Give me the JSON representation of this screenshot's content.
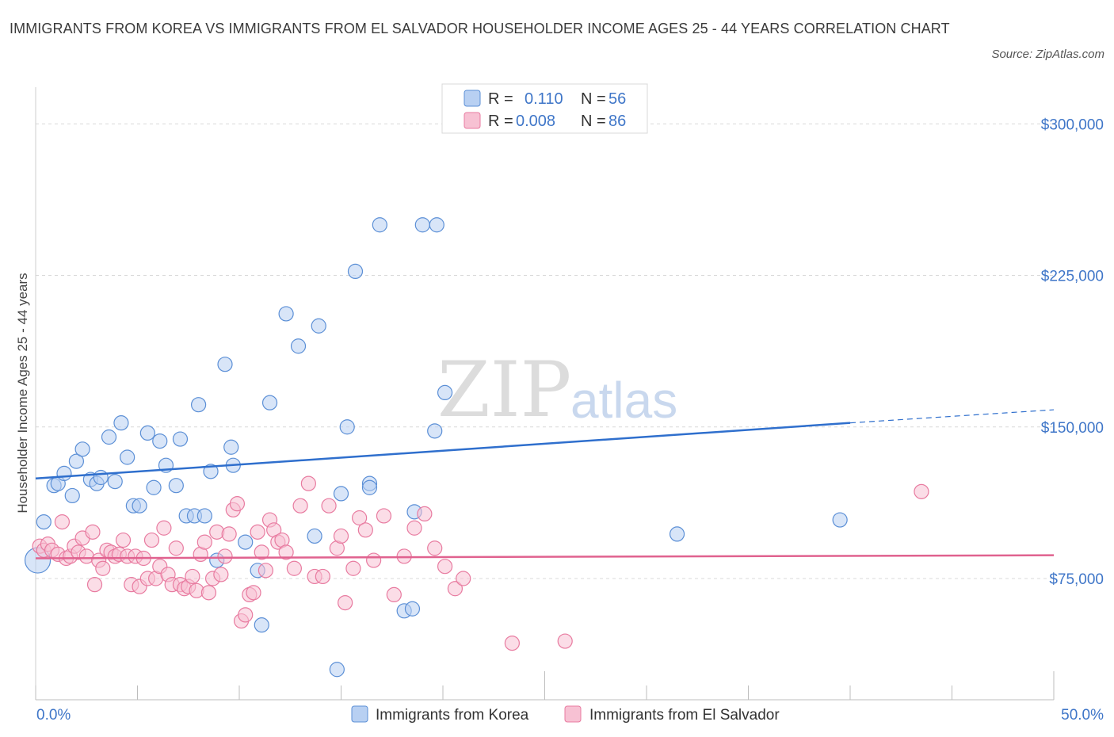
{
  "title": "IMMIGRANTS FROM KOREA VS IMMIGRANTS FROM EL SALVADOR HOUSEHOLDER INCOME AGES 25 - 44 YEARS CORRELATION CHART",
  "source": "Source: ZipAtlas.com",
  "watermark": {
    "zip": "ZIP",
    "atlas": "atlas"
  },
  "colors": {
    "korea": "#5b8fd6",
    "korea_fill": "#b8d0f2",
    "el_salvador": "#e87ba0",
    "el_salvador_fill": "#f7c1d3",
    "axis_text": "#3f76c8"
  },
  "legend_top": [
    {
      "r_label": "R =",
      "r_value": "0.110",
      "n_label": "N =",
      "n_value": "56"
    },
    {
      "r_label": "R =",
      "r_value": "0.008",
      "n_label": "N =",
      "n_value": "86"
    }
  ],
  "chart_data": {
    "type": "scatter",
    "xlabel": "",
    "ylabel": "Householder Income Ages 25 - 44 years",
    "xlim": [
      0,
      50
    ],
    "ylim": [
      15000,
      315000
    ],
    "x_tick_labels": [
      "0.0%",
      "50.0%"
    ],
    "y_ticks": [
      75000,
      150000,
      225000,
      300000
    ],
    "y_tick_labels": [
      "$75,000",
      "$150,000",
      "$225,000",
      "$300,000"
    ],
    "grid": true,
    "legend": "bottom-center",
    "series": [
      {
        "name": "Immigrants from Korea",
        "trend": {
          "x0": 0,
          "y0": 124500,
          "x1": 40,
          "y1": 152000,
          "dashed_to_x": 50,
          "dashed_to_y": 158500
        },
        "points": [
          [
            0.4,
            103000
          ],
          [
            0.9,
            121000
          ],
          [
            1.1,
            122000
          ],
          [
            1.4,
            127000
          ],
          [
            1.8,
            116000
          ],
          [
            2.0,
            133000
          ],
          [
            2.3,
            139000
          ],
          [
            2.7,
            124000
          ],
          [
            3.0,
            122000
          ],
          [
            3.2,
            125000
          ],
          [
            3.6,
            145000
          ],
          [
            3.9,
            123000
          ],
          [
            4.2,
            152000
          ],
          [
            4.5,
            135000
          ],
          [
            4.8,
            111000
          ],
          [
            5.1,
            111000
          ],
          [
            5.5,
            147000
          ],
          [
            5.8,
            120000
          ],
          [
            6.1,
            143000
          ],
          [
            6.4,
            131000
          ],
          [
            6.9,
            121000
          ],
          [
            7.1,
            144000
          ],
          [
            7.4,
            106000
          ],
          [
            7.8,
            106000
          ],
          [
            8.0,
            161000
          ],
          [
            8.3,
            106000
          ],
          [
            8.6,
            128000
          ],
          [
            8.9,
            84000
          ],
          [
            9.3,
            181000
          ],
          [
            9.6,
            140000
          ],
          [
            9.7,
            131000
          ],
          [
            10.3,
            93000
          ],
          [
            10.9,
            79000
          ],
          [
            11.1,
            52000
          ],
          [
            11.5,
            162000
          ],
          [
            12.3,
            206000
          ],
          [
            12.9,
            190000
          ],
          [
            13.7,
            96000
          ],
          [
            13.9,
            200000
          ],
          [
            14.8,
            30000
          ],
          [
            15.0,
            117000
          ],
          [
            15.3,
            150000
          ],
          [
            15.7,
            227000
          ],
          [
            16.4,
            122000
          ],
          [
            16.4,
            120000
          ],
          [
            16.9,
            250000
          ],
          [
            18.1,
            59000
          ],
          [
            18.5,
            60000
          ],
          [
            18.6,
            108000
          ],
          [
            19.0,
            250000
          ],
          [
            19.6,
            148000
          ],
          [
            19.7,
            250000
          ],
          [
            20.1,
            167000
          ],
          [
            31.5,
            97000
          ],
          [
            39.5,
            104000
          ],
          [
            0.1,
            84000
          ]
        ]
      },
      {
        "name": "Immigrants from El Salvador",
        "trend": {
          "x0": 0,
          "y0": 85000,
          "x1": 50,
          "y1": 86500
        },
        "points": [
          [
            0.2,
            91000
          ],
          [
            0.4,
            89000
          ],
          [
            0.6,
            92000
          ],
          [
            0.8,
            89000
          ],
          [
            1.1,
            87000
          ],
          [
            1.3,
            103000
          ],
          [
            1.5,
            85000
          ],
          [
            1.7,
            86000
          ],
          [
            1.9,
            91000
          ],
          [
            2.1,
            88000
          ],
          [
            2.3,
            95000
          ],
          [
            2.5,
            86000
          ],
          [
            2.8,
            98000
          ],
          [
            2.9,
            72000
          ],
          [
            3.1,
            84000
          ],
          [
            3.3,
            80000
          ],
          [
            3.5,
            89000
          ],
          [
            3.7,
            88000
          ],
          [
            3.9,
            86000
          ],
          [
            4.1,
            87000
          ],
          [
            4.3,
            94000
          ],
          [
            4.5,
            86000
          ],
          [
            4.7,
            72000
          ],
          [
            4.9,
            86000
          ],
          [
            5.1,
            71000
          ],
          [
            5.3,
            85000
          ],
          [
            5.5,
            75000
          ],
          [
            5.7,
            94000
          ],
          [
            5.9,
            75000
          ],
          [
            6.1,
            81000
          ],
          [
            6.3,
            100000
          ],
          [
            6.5,
            77000
          ],
          [
            6.7,
            72000
          ],
          [
            6.9,
            90000
          ],
          [
            7.1,
            72000
          ],
          [
            7.3,
            70000
          ],
          [
            7.5,
            71000
          ],
          [
            7.7,
            76000
          ],
          [
            7.9,
            69000
          ],
          [
            8.1,
            87000
          ],
          [
            8.3,
            93000
          ],
          [
            8.5,
            68000
          ],
          [
            8.7,
            75000
          ],
          [
            8.9,
            98000
          ],
          [
            9.1,
            77000
          ],
          [
            9.3,
            86000
          ],
          [
            9.5,
            97000
          ],
          [
            9.7,
            109000
          ],
          [
            9.9,
            112000
          ],
          [
            10.1,
            54000
          ],
          [
            10.3,
            57000
          ],
          [
            10.5,
            67000
          ],
          [
            10.7,
            68000
          ],
          [
            10.9,
            98000
          ],
          [
            11.1,
            88000
          ],
          [
            11.3,
            79000
          ],
          [
            11.5,
            104000
          ],
          [
            11.7,
            99000
          ],
          [
            11.9,
            93000
          ],
          [
            12.1,
            94000
          ],
          [
            12.3,
            88000
          ],
          [
            12.7,
            80000
          ],
          [
            13.0,
            111000
          ],
          [
            13.4,
            122000
          ],
          [
            13.7,
            76000
          ],
          [
            14.1,
            76000
          ],
          [
            14.4,
            111000
          ],
          [
            14.8,
            90000
          ],
          [
            15.0,
            96000
          ],
          [
            15.2,
            63000
          ],
          [
            15.6,
            80000
          ],
          [
            15.9,
            105000
          ],
          [
            16.2,
            99000
          ],
          [
            16.6,
            84000
          ],
          [
            17.1,
            106000
          ],
          [
            17.6,
            67000
          ],
          [
            18.1,
            86000
          ],
          [
            18.6,
            100000
          ],
          [
            19.1,
            107000
          ],
          [
            19.6,
            90000
          ],
          [
            20.1,
            81000
          ],
          [
            20.6,
            70000
          ],
          [
            21.0,
            75000
          ],
          [
            23.4,
            43000
          ],
          [
            26.0,
            44000
          ],
          [
            43.5,
            118000
          ]
        ]
      }
    ]
  }
}
